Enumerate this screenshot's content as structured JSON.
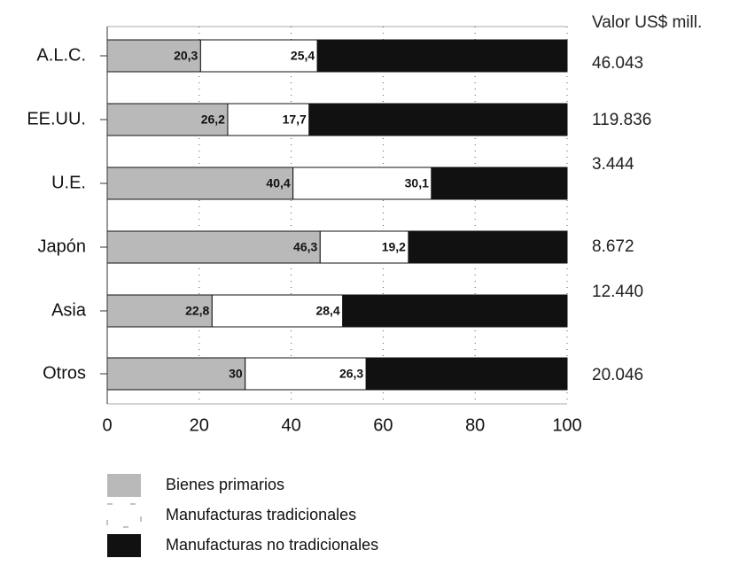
{
  "chart_data": {
    "type": "stacked-bar-horizontal",
    "categories": [
      "A.L.C.",
      "EE.UU.",
      "U.E.",
      "Japón",
      "Asia",
      "Otros"
    ],
    "series": [
      {
        "name": "Bienes primarios",
        "color": "#b9b9b9",
        "values": [
          20.3,
          26.2,
          40.4,
          46.3,
          22.8,
          30
        ],
        "value_labels": [
          "20,3",
          "26,2",
          "40,4",
          "46,3",
          "22,8",
          "30"
        ]
      },
      {
        "name": "Manufacturas tradicionales",
        "color": "#ffffff",
        "values": [
          25.4,
          17.7,
          30.1,
          19.2,
          28.4,
          26.3
        ],
        "value_labels": [
          "25,4",
          "17,7",
          "30,1",
          "19,2",
          "28,4",
          "26,3"
        ]
      },
      {
        "name": "Manufacturas no tradicionales",
        "color": "#111111",
        "values": [
          54.3,
          56.1,
          29.5,
          34.5,
          48.8,
          43.7
        ]
      }
    ],
    "xlim": [
      0,
      100
    ],
    "xticks": [
      0,
      20,
      40,
      60,
      80,
      100
    ],
    "grid": true,
    "totals": {
      "title": "Valor US$ mill.",
      "labels": [
        "46.043",
        "119.836",
        "3.444",
        "8.672",
        "12.440",
        "20.046"
      ]
    }
  }
}
